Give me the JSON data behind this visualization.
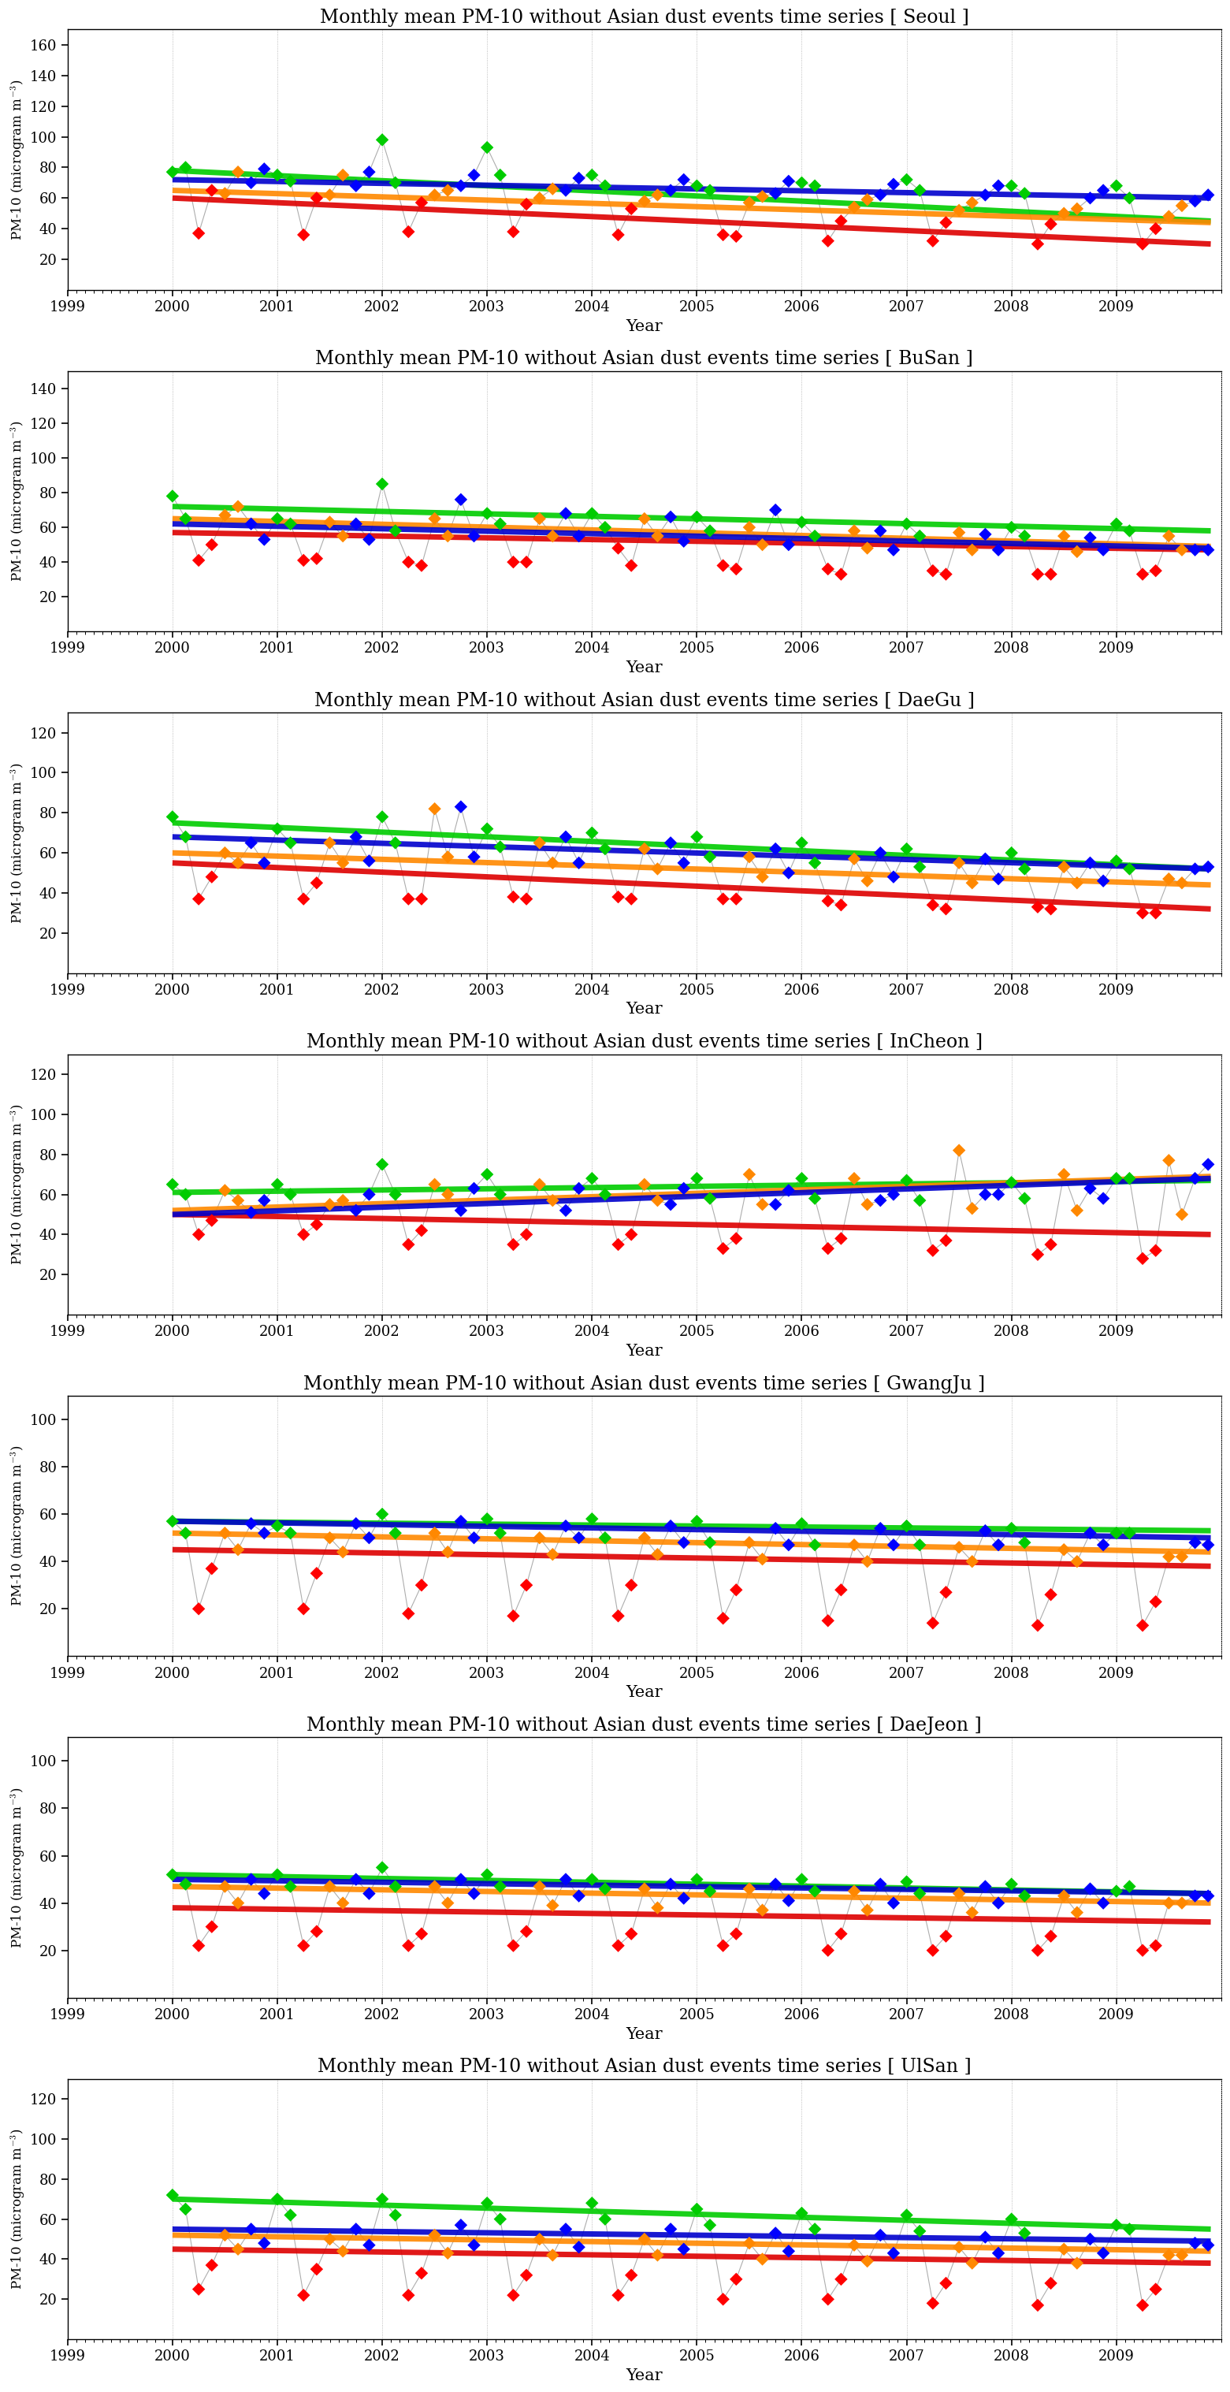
{
  "cities": [
    "Seoul",
    "BuSan",
    "DaeGu",
    "InCheon",
    "GwangJu",
    "DaeJeon",
    "UlSan"
  ],
  "title_template": "Monthly mean PM-10 without Asian dust events time series [ {city} ]",
  "ylabel": "PM-10 (microgram m$^{-3}$)",
  "xlabel": "Year",
  "season_colors": {
    "spring": "#00cc00",
    "summer": "#ff0000",
    "fall": "#ff8800",
    "winter": "#0000ff"
  },
  "trend_colors": {
    "spring": "#00cc00",
    "summer": "#dd0000",
    "fall": "#ff8800",
    "winter": "#0000cc"
  },
  "data": {
    "Seoul": {
      "ylim": [
        0,
        170
      ],
      "yticks": [
        20,
        40,
        60,
        80,
        100,
        120,
        140,
        160
      ],
      "years": [
        2000,
        2001,
        2002,
        2003,
        2004,
        2005,
        2006,
        2007,
        2008,
        2009
      ],
      "spring": [
        77,
        75,
        98,
        93,
        75,
        68,
        70,
        72,
        68,
        68
      ],
      "summer": [
        37,
        36,
        38,
        38,
        36,
        36,
        32,
        32,
        30,
        30
      ],
      "fall": [
        63,
        62,
        62,
        60,
        58,
        57,
        54,
        52,
        50,
        48
      ],
      "winter": [
        70,
        68,
        68,
        65,
        65,
        63,
        62,
        62,
        60,
        58
      ],
      "spring_extra": [
        80,
        71,
        70,
        75,
        68,
        65,
        68,
        65,
        63,
        60
      ],
      "summer_extra": [
        65,
        60,
        57,
        56,
        53,
        35,
        45,
        44,
        43,
        40
      ],
      "fall_extra": [
        77,
        75,
        65,
        66,
        62,
        61,
        59,
        57,
        53,
        55
      ],
      "winter_extra": [
        79,
        77,
        75,
        73,
        72,
        71,
        69,
        68,
        65,
        62
      ],
      "spring_trend": [
        78,
        45
      ],
      "summer_trend": [
        60,
        30
      ],
      "fall_trend": [
        65,
        44
      ],
      "winter_trend": [
        72,
        60
      ]
    },
    "BuSan": {
      "ylim": [
        0,
        150
      ],
      "yticks": [
        20,
        40,
        60,
        80,
        100,
        120,
        140
      ],
      "years": [
        2000,
        2001,
        2002,
        2003,
        2004,
        2005,
        2006,
        2007,
        2008,
        2009
      ],
      "spring": [
        78,
        65,
        85,
        68,
        68,
        66,
        63,
        62,
        60,
        62
      ],
      "summer": [
        41,
        41,
        40,
        40,
        48,
        38,
        36,
        35,
        33,
        33
      ],
      "fall": [
        67,
        63,
        65,
        65,
        65,
        60,
        58,
        57,
        55,
        55
      ],
      "winter": [
        62,
        62,
        76,
        68,
        66,
        70,
        58,
        56,
        54,
        47
      ],
      "spring_extra": [
        65,
        62,
        58,
        62,
        60,
        58,
        55,
        55,
        55,
        58
      ],
      "summer_extra": [
        50,
        42,
        38,
        40,
        38,
        36,
        33,
        33,
        33,
        35
      ],
      "fall_extra": [
        72,
        55,
        55,
        55,
        55,
        50,
        48,
        47,
        46,
        47
      ],
      "winter_extra": [
        53,
        53,
        55,
        55,
        52,
        50,
        47,
        47,
        47,
        47
      ],
      "spring_trend": [
        72,
        58
      ],
      "summer_trend": [
        57,
        47
      ],
      "fall_trend": [
        65,
        49
      ],
      "winter_trend": [
        62,
        48
      ]
    },
    "DaeGu": {
      "ylim": [
        0,
        130
      ],
      "yticks": [
        20,
        40,
        60,
        80,
        100,
        120
      ],
      "years": [
        2000,
        2001,
        2002,
        2003,
        2004,
        2005,
        2006,
        2007,
        2008,
        2009
      ],
      "spring": [
        78,
        72,
        78,
        72,
        70,
        68,
        65,
        62,
        60,
        56
      ],
      "summer": [
        37,
        37,
        37,
        38,
        38,
        37,
        36,
        34,
        33,
        30
      ],
      "fall": [
        60,
        65,
        82,
        65,
        62,
        58,
        57,
        55,
        53,
        47
      ],
      "winter": [
        65,
        68,
        83,
        68,
        65,
        62,
        60,
        57,
        55,
        52
      ],
      "spring_extra": [
        68,
        65,
        65,
        63,
        62,
        58,
        55,
        53,
        52,
        52
      ],
      "summer_extra": [
        48,
        45,
        37,
        37,
        37,
        37,
        34,
        32,
        32,
        30
      ],
      "fall_extra": [
        55,
        55,
        58,
        55,
        52,
        48,
        46,
        45,
        45,
        45
      ],
      "winter_extra": [
        55,
        56,
        58,
        55,
        55,
        50,
        48,
        47,
        46,
        53
      ],
      "spring_trend": [
        75,
        52
      ],
      "summer_trend": [
        55,
        32
      ],
      "fall_trend": [
        60,
        44
      ],
      "winter_trend": [
        68,
        52
      ]
    },
    "InCheon": {
      "ylim": [
        0,
        130
      ],
      "yticks": [
        20,
        40,
        60,
        80,
        100,
        120
      ],
      "years": [
        2000,
        2001,
        2002,
        2003,
        2004,
        2005,
        2006,
        2007,
        2008,
        2009
      ],
      "spring": [
        65,
        65,
        75,
        70,
        68,
        68,
        68,
        67,
        66,
        68
      ],
      "summer": [
        40,
        40,
        35,
        35,
        35,
        33,
        33,
        32,
        30,
        28
      ],
      "fall": [
        62,
        55,
        65,
        65,
        65,
        70,
        68,
        82,
        70,
        77
      ],
      "winter": [
        51,
        52,
        52,
        52,
        55,
        55,
        57,
        60,
        63,
        68
      ],
      "spring_extra": [
        60,
        60,
        60,
        60,
        60,
        58,
        58,
        57,
        58,
        68
      ],
      "summer_extra": [
        47,
        45,
        42,
        40,
        40,
        38,
        38,
        37,
        35,
        32
      ],
      "fall_extra": [
        57,
        57,
        60,
        57,
        57,
        55,
        55,
        53,
        52,
        50
      ],
      "winter_extra": [
        57,
        60,
        63,
        63,
        63,
        62,
        60,
        60,
        58,
        75
      ],
      "spring_trend": [
        61,
        67
      ],
      "summer_trend": [
        50,
        40
      ],
      "fall_trend": [
        52,
        69
      ],
      "winter_trend": [
        50,
        68
      ]
    },
    "GwangJu": {
      "ylim": [
        0,
        110
      ],
      "yticks": [
        20,
        40,
        60,
        80,
        100
      ],
      "years": [
        2000,
        2001,
        2002,
        2003,
        2004,
        2005,
        2006,
        2007,
        2008,
        2009
      ],
      "spring": [
        57,
        55,
        60,
        58,
        58,
        57,
        56,
        55,
        54,
        52
      ],
      "summer": [
        20,
        20,
        18,
        17,
        17,
        16,
        15,
        14,
        13,
        13
      ],
      "fall": [
        52,
        50,
        52,
        50,
        50,
        48,
        47,
        46,
        45,
        42
      ],
      "winter": [
        56,
        56,
        57,
        55,
        55,
        54,
        54,
        53,
        52,
        48
      ],
      "spring_extra": [
        52,
        52,
        52,
        52,
        50,
        48,
        47,
        47,
        48,
        52
      ],
      "summer_extra": [
        37,
        35,
        30,
        30,
        30,
        28,
        28,
        27,
        26,
        23
      ],
      "fall_extra": [
        45,
        44,
        44,
        43,
        43,
        41,
        40,
        40,
        40,
        42
      ],
      "winter_extra": [
        52,
        50,
        50,
        50,
        48,
        47,
        47,
        47,
        47,
        47
      ],
      "spring_trend": [
        57,
        53
      ],
      "summer_trend": [
        45,
        38
      ],
      "fall_trend": [
        52,
        44
      ],
      "winter_trend": [
        57,
        50
      ]
    },
    "DaeJeon": {
      "ylim": [
        0,
        110
      ],
      "yticks": [
        20,
        40,
        60,
        80,
        100
      ],
      "years": [
        2000,
        2001,
        2002,
        2003,
        2004,
        2005,
        2006,
        2007,
        2008,
        2009
      ],
      "spring": [
        52,
        52,
        55,
        52,
        50,
        50,
        50,
        49,
        48,
        45
      ],
      "summer": [
        22,
        22,
        22,
        22,
        22,
        22,
        20,
        20,
        20,
        20
      ],
      "fall": [
        47,
        47,
        47,
        47,
        46,
        46,
        45,
        44,
        43,
        40
      ],
      "winter": [
        50,
        50,
        50,
        50,
        48,
        48,
        48,
        47,
        46,
        43
      ],
      "spring_extra": [
        48,
        47,
        47,
        47,
        46,
        45,
        45,
        44,
        43,
        47
      ],
      "summer_extra": [
        30,
        28,
        27,
        28,
        27,
        27,
        27,
        26,
        26,
        22
      ],
      "fall_extra": [
        40,
        40,
        40,
        39,
        38,
        37,
        37,
        36,
        36,
        40
      ],
      "winter_extra": [
        44,
        44,
        44,
        43,
        42,
        41,
        40,
        40,
        40,
        43
      ],
      "spring_trend": [
        52,
        44
      ],
      "summer_trend": [
        38,
        32
      ],
      "fall_trend": [
        47,
        40
      ],
      "winter_trend": [
        50,
        44
      ]
    },
    "UlSan": {
      "ylim": [
        0,
        130
      ],
      "yticks": [
        20,
        40,
        60,
        80,
        100,
        120
      ],
      "years": [
        2000,
        2001,
        2002,
        2003,
        2004,
        2005,
        2006,
        2007,
        2008,
        2009
      ],
      "spring": [
        72,
        70,
        70,
        68,
        68,
        65,
        63,
        62,
        60,
        57
      ],
      "summer": [
        25,
        22,
        22,
        22,
        22,
        20,
        20,
        18,
        17,
        17
      ],
      "fall": [
        52,
        50,
        52,
        50,
        50,
        48,
        47,
        46,
        45,
        42
      ],
      "winter": [
        55,
        55,
        57,
        55,
        55,
        53,
        52,
        51,
        50,
        48
      ],
      "spring_extra": [
        65,
        62,
        62,
        60,
        60,
        57,
        55,
        54,
        53,
        55
      ],
      "summer_extra": [
        37,
        35,
        33,
        32,
        32,
        30,
        30,
        28,
        28,
        25
      ],
      "fall_extra": [
        45,
        44,
        43,
        42,
        42,
        40,
        39,
        38,
        38,
        42
      ],
      "winter_extra": [
        48,
        47,
        47,
        46,
        45,
        44,
        43,
        43,
        43,
        47
      ],
      "spring_trend": [
        70,
        55
      ],
      "summer_trend": [
        45,
        38
      ],
      "fall_trend": [
        52,
        44
      ],
      "winter_trend": [
        55,
        49
      ]
    }
  }
}
